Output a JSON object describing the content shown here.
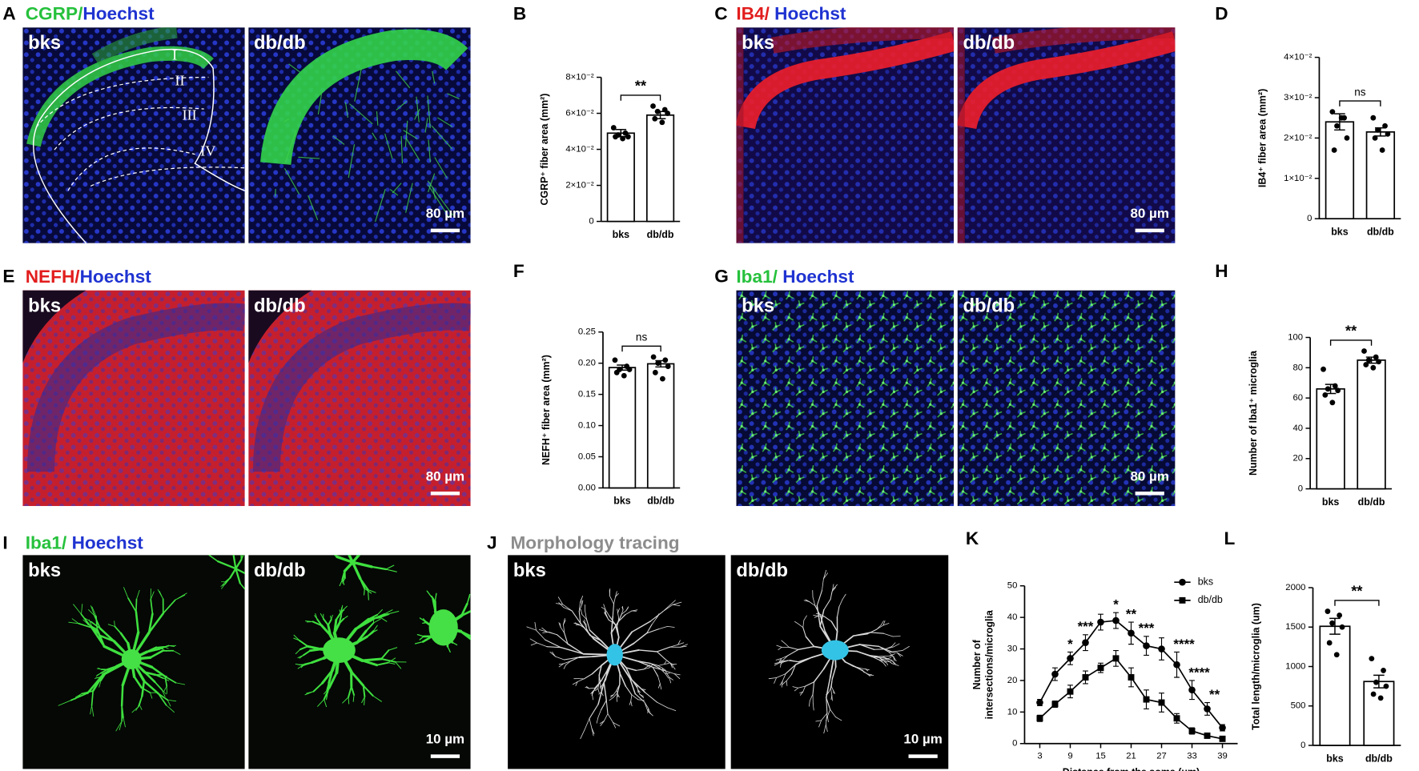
{
  "panels": [
    {
      "letter": "A",
      "title": [
        {
          "text": "CGRP/",
          "color": "#26c13c"
        },
        {
          "text": "Hoechst",
          "color": "#1f33d1"
        }
      ],
      "images": [
        "bks",
        "db/db"
      ],
      "scale_bar": "80 µm",
      "layers": [
        "I",
        "II",
        "III",
        "IV"
      ]
    },
    {
      "letter": "C",
      "title": [
        {
          "text": "IB4/ ",
          "color": "#e21d1d"
        },
        {
          "text": "Hoechst",
          "color": "#1f33d1"
        }
      ],
      "images": [
        "bks",
        "db/db"
      ],
      "scale_bar": "80 µm"
    },
    {
      "letter": "E",
      "title": [
        {
          "text": "NEFH/",
          "color": "#e21d1d"
        },
        {
          "text": "Hoechst",
          "color": "#1f33d1"
        }
      ],
      "images": [
        "bks",
        "db/db"
      ],
      "scale_bar": "80 µm"
    },
    {
      "letter": "G",
      "title": [
        {
          "text": "Iba1/ ",
          "color": "#26c13c"
        },
        {
          "text": "Hoechst",
          "color": "#1f33d1"
        }
      ],
      "images": [
        "bks",
        "db/db"
      ],
      "scale_bar": "80 µm"
    },
    {
      "letter": "I",
      "title": [
        {
          "text": "Iba1/ ",
          "color": "#26c13c"
        },
        {
          "text": "Hoechst",
          "color": "#1f33d1"
        }
      ],
      "images": [
        "bks",
        "db/db"
      ],
      "scale_bar": "10 µm"
    },
    {
      "letter": "J",
      "title": [
        {
          "text": "Morphology tracing",
          "color": "#8c8c8c"
        }
      ],
      "images": [
        "bks",
        "db/db"
      ],
      "scale_bar": "10 µm"
    }
  ],
  "chart_data": [
    {
      "panel": "B",
      "type": "bar",
      "categories": [
        "bks",
        "db/db"
      ],
      "values": [
        0.049,
        0.059
      ],
      "errors": [
        0.002,
        0.002
      ],
      "points": [
        [
          0.052,
          0.049,
          0.048,
          0.047,
          0.047,
          0.046
        ],
        [
          0.064,
          0.062,
          0.061,
          0.06,
          0.057,
          0.055
        ]
      ],
      "color": "#ffffff",
      "ylabel": "CGRP⁺ fiber area (mm²)",
      "ylim": [
        0,
        0.08
      ],
      "yticks": [
        0,
        {
          "value": 0.02,
          "label": "2×10⁻²"
        },
        {
          "value": 0.04,
          "label": "4×10⁻²"
        },
        {
          "value": 0.06,
          "label": "6×10⁻²"
        },
        {
          "value": 0.08,
          "label": "8×10⁻²"
        }
      ],
      "significance": "**"
    },
    {
      "panel": "D",
      "type": "bar",
      "categories": [
        "bks",
        "db/db"
      ],
      "values": [
        0.024,
        0.0215
      ],
      "errors": [
        0.002,
        0.001
      ],
      "points": [
        [
          0.0265,
          0.025,
          0.023,
          0.02,
          0.017,
          0.025
        ],
        [
          0.025,
          0.023,
          0.022,
          0.021,
          0.02,
          0.017
        ]
      ],
      "color": "#ffffff",
      "ylabel": "IB4⁺ fiber area (mm²)",
      "ylim": [
        0,
        0.04
      ],
      "yticks": [
        0,
        {
          "value": 0.01,
          "label": "1×10⁻²"
        },
        {
          "value": 0.02,
          "label": "2×10⁻²"
        },
        {
          "value": 0.03,
          "label": "3×10⁻²"
        },
        {
          "value": 0.04,
          "label": "4×10⁻²"
        }
      ],
      "significance": "ns"
    },
    {
      "panel": "F",
      "type": "bar",
      "categories": [
        "bks",
        "db/db"
      ],
      "values": [
        0.193,
        0.199
      ],
      "errors": [
        0.004,
        0.005
      ],
      "points": [
        [
          0.205,
          0.195,
          0.19,
          0.19,
          0.185,
          0.18
        ],
        [
          0.21,
          0.205,
          0.2,
          0.195,
          0.185,
          0.175
        ]
      ],
      "color": "#ffffff",
      "ylabel": "NEFH⁺ fiber area (mm²)",
      "ylim": [
        0,
        0.25
      ],
      "yticks": [
        {
          "value": 0,
          "label": "0.00"
        },
        0.05,
        {
          "value": 0.1,
          "label": "0.10"
        },
        0.15,
        {
          "value": 0.2,
          "label": "0.20"
        },
        0.25
      ],
      "significance": "ns"
    },
    {
      "panel": "H",
      "type": "bar",
      "categories": [
        "bks",
        "db/db"
      ],
      "values": [
        66,
        85
      ],
      "errors": [
        3,
        2
      ],
      "points": [
        [
          79,
          68,
          66,
          65,
          62,
          57
        ],
        [
          91,
          87,
          85,
          84,
          82,
          80
        ]
      ],
      "color": "#ffffff",
      "ylabel": "Number of Iba1⁺ microglia",
      "ylim": [
        0,
        100
      ],
      "yticks": [
        0,
        20,
        40,
        60,
        80,
        100
      ],
      "significance": "**"
    },
    {
      "panel": "K",
      "type": "line",
      "x": [
        3,
        6,
        9,
        12,
        15,
        18,
        21,
        24,
        27,
        30,
        33,
        36,
        39
      ],
      "series": [
        {
          "name": "bks",
          "marker": "circle",
          "color": "#000000",
          "values": [
            13,
            22,
            27,
            32,
            38.5,
            39,
            35,
            31,
            30,
            25,
            17,
            11,
            5
          ],
          "errors": [
            1,
            2,
            2,
            2.5,
            2.5,
            2.5,
            3.5,
            3,
            3.5,
            4,
            3,
            2,
            1
          ]
        },
        {
          "name": "db/db",
          "marker": "square",
          "color": "#000000",
          "values": [
            8,
            12.5,
            16.5,
            21,
            24,
            27,
            21,
            14,
            13,
            8,
            4,
            2.5,
            1.5
          ],
          "errors": [
            1,
            1,
            2,
            2,
            1.5,
            2.5,
            3,
            3,
            3,
            1.5,
            1,
            0.8,
            0.8
          ]
        }
      ],
      "xlim": [
        0,
        42
      ],
      "xticks": [
        3,
        9,
        15,
        21,
        27,
        33,
        39
      ],
      "ylim": [
        0,
        50
      ],
      "yticks": [
        0,
        10,
        20,
        30,
        40,
        50
      ],
      "xlabel": "Distance from the soma (um)",
      "ylabel": [
        "Number of",
        "intersections/microglia"
      ],
      "annotations": [
        {
          "x": 9,
          "text": "*"
        },
        {
          "x": 12,
          "text": "***"
        },
        {
          "x": 18,
          "text": "*"
        },
        {
          "x": 21,
          "text": "**"
        },
        {
          "x": 24,
          "text": "***"
        },
        {
          "x": 30,
          "text": "****"
        },
        {
          "x": 33,
          "text": "****"
        },
        {
          "x": 36,
          "text": "**"
        }
      ]
    },
    {
      "panel": "L",
      "type": "bar",
      "categories": [
        "bks",
        "db/db"
      ],
      "values": [
        1510,
        810
      ],
      "errors": [
        100,
        80
      ],
      "points": [
        [
          1700,
          1650,
          1550,
          1500,
          1300,
          1150
        ],
        [
          1100,
          950,
          800,
          750,
          650,
          600
        ]
      ],
      "color": "#ffffff",
      "ylabel": "Total length/microglia (um)",
      "ylim": [
        0,
        2000
      ],
      "yticks": [
        0,
        500,
        1000,
        1500,
        2000
      ],
      "significance": "**"
    }
  ]
}
